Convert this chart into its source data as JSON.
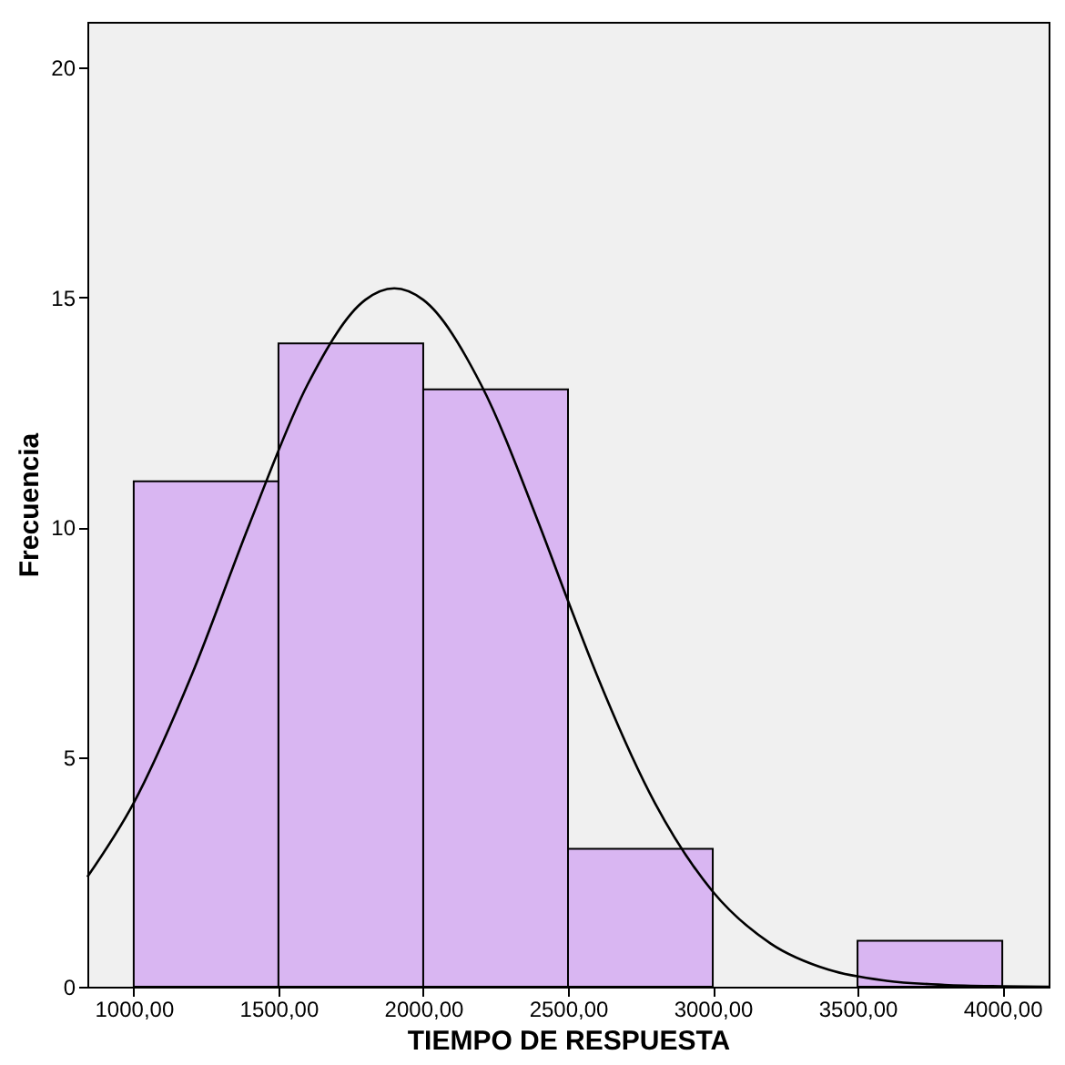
{
  "chart_data": {
    "type": "histogram",
    "xlabel": "TIEMPO DE RESPUESTA",
    "ylabel": "Frecuencia",
    "bins": [
      1000,
      1500,
      2000,
      2500,
      3000,
      3500,
      4000
    ],
    "values": [
      11,
      14,
      13,
      3,
      0,
      1
    ],
    "color": "#d9b6f2",
    "series": [
      {
        "type": "line",
        "color": "#000000",
        "x": [
          840,
          1000,
          1200,
          1400,
          1600,
          1800,
          1900,
          2000,
          2200,
          2400,
          2500,
          2600,
          2800,
          3000,
          3200,
          3400,
          3600,
          3800,
          4000,
          4160
        ],
        "values": [
          2.39,
          4.0,
          6.78,
          10.07,
          13.1,
          14.95,
          15.2,
          14.95,
          13.1,
          10.07,
          8.4,
          6.78,
          4.0,
          2.07,
          0.94,
          0.37,
          0.13,
          0.04,
          0.01,
          0.0
        ]
      }
    ],
    "xlim": [
      840,
      4160
    ],
    "ylim": [
      0,
      21
    ],
    "xticks": [
      {
        "value": 1000,
        "label": "1000,00"
      },
      {
        "value": 1500,
        "label": "1500,00"
      },
      {
        "value": 2000,
        "label": "2000,00"
      },
      {
        "value": 2500,
        "label": "2500,00"
      },
      {
        "value": 3000,
        "label": "3000,00"
      },
      {
        "value": 3500,
        "label": "3500,00"
      },
      {
        "value": 4000,
        "label": "4000,00"
      }
    ],
    "yticks": [
      0,
      5,
      10,
      15,
      20
    ],
    "grid": false
  }
}
